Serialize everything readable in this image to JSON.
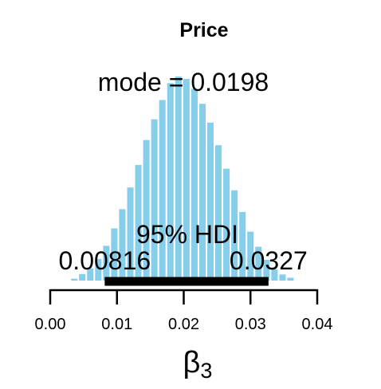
{
  "chart_data": {
    "type": "bar",
    "title": "Price",
    "xlabel_symbol": "β",
    "xlabel_subscript": "3",
    "xlim": [
      0.0,
      0.04
    ],
    "x_ticks": [
      "0.00",
      "0.01",
      "0.02",
      "0.03",
      "0.04"
    ],
    "x_tick_values": [
      0.0,
      0.01,
      0.02,
      0.03,
      0.04
    ],
    "bar_color": "#87CEEB",
    "bin_width": 0.0012,
    "bins": [
      {
        "x": 0.0036,
        "density": 0.4
      },
      {
        "x": 0.0048,
        "density": 1.4
      },
      {
        "x": 0.006,
        "density": 2.6
      },
      {
        "x": 0.0072,
        "density": 4.6
      },
      {
        "x": 0.0084,
        "density": 7.4
      },
      {
        "x": 0.0096,
        "density": 11.1
      },
      {
        "x": 0.0108,
        "density": 15.2
      },
      {
        "x": 0.012,
        "density": 19.8
      },
      {
        "x": 0.0132,
        "density": 24.6
      },
      {
        "x": 0.0144,
        "density": 29.9
      },
      {
        "x": 0.0156,
        "density": 34.3
      },
      {
        "x": 0.0168,
        "density": 38.4
      },
      {
        "x": 0.018,
        "density": 42.0
      },
      {
        "x": 0.0192,
        "density": 43.4
      },
      {
        "x": 0.0204,
        "density": 42.9
      },
      {
        "x": 0.0216,
        "density": 40.8
      },
      {
        "x": 0.0228,
        "density": 37.6
      },
      {
        "x": 0.024,
        "density": 33.6
      },
      {
        "x": 0.0252,
        "density": 28.8
      },
      {
        "x": 0.0264,
        "density": 23.8
      },
      {
        "x": 0.0276,
        "density": 19.2
      },
      {
        "x": 0.0288,
        "density": 14.6
      },
      {
        "x": 0.03,
        "density": 10.4
      },
      {
        "x": 0.0312,
        "density": 7.2
      },
      {
        "x": 0.0324,
        "density": 4.4
      },
      {
        "x": 0.0336,
        "density": 2.4
      },
      {
        "x": 0.0348,
        "density": 1.3
      },
      {
        "x": 0.036,
        "density": 0.6
      }
    ],
    "mode_label": "mode = 0.0198",
    "hdi": {
      "label": "95% HDI",
      "low": 0.00816,
      "high": 0.0327,
      "low_label": "0.00816",
      "high_label": "0.0327"
    }
  }
}
